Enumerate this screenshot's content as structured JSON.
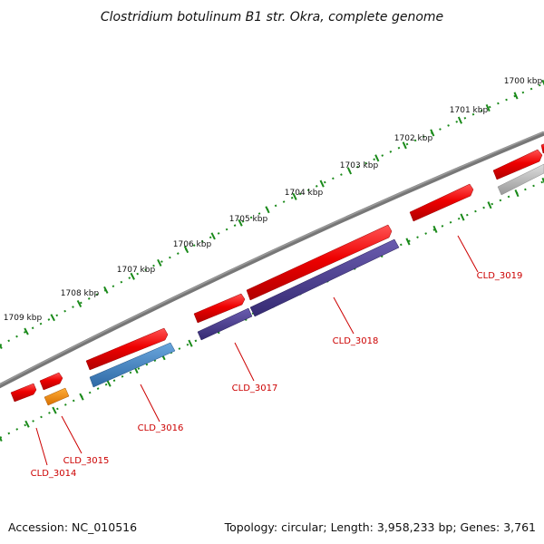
{
  "title": "Clostridium botulinum B1 str. Okra, complete genome",
  "footer": {
    "accession": "Accession: NC_010516",
    "summary": "Topology: circular; Length: 3,958,233 bp; Genes: 3,761"
  },
  "scale_labels": [
    "1700 kbp",
    "1701 kbp",
    "1702 kbp",
    "1703 kbp",
    "1704 kbp",
    "1705 kbp",
    "1706 kbp",
    "1707 kbp",
    "1708 kbp",
    "1709 kbp"
  ],
  "gene_labels": [
    "CLD_3014",
    "CLD_3015",
    "CLD_3016",
    "CLD_3017",
    "CLD_3018",
    "CLD_3019"
  ],
  "colors": {
    "backbone": "#777777",
    "cds": "#e60000",
    "blue_feature": "#3d7fbf",
    "purple_feature": "#4a3d8c",
    "orange_feature": "#f08a00",
    "gray_feature": "#b0b0b0",
    "tick": "#1a8a1a",
    "label": "#cc0000"
  }
}
